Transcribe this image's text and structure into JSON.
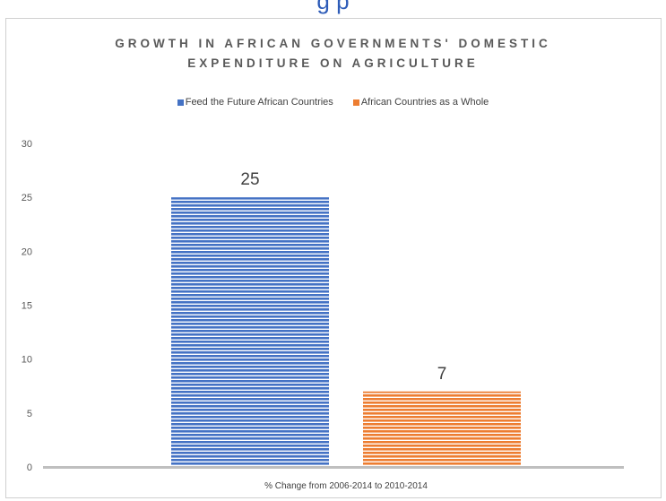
{
  "page": {
    "cropped_heading": "g                                                             p"
  },
  "chart_data": {
    "type": "bar",
    "title_lines": [
      "GROWTH IN AFRICAN GOVERNMENTS' DOMESTIC",
      "EXPENDITURE ON AGRICULTURE"
    ],
    "categories": [
      "% Change from 2006-2014 to 2010-2014"
    ],
    "series": [
      {
        "name": "Feed the Future African Countries",
        "values": [
          25
        ],
        "color": "#4472c4"
      },
      {
        "name": "African Countries as a Whole",
        "values": [
          7
        ],
        "color": "#ed7d31"
      }
    ],
    "data_labels": [
      "25",
      "7"
    ],
    "ylim": [
      0,
      30
    ],
    "yticks": [
      0,
      5,
      10,
      15,
      20,
      25,
      30
    ],
    "grid": false,
    "legend_position": "top",
    "bar_pattern": "horizontal-stripes"
  }
}
